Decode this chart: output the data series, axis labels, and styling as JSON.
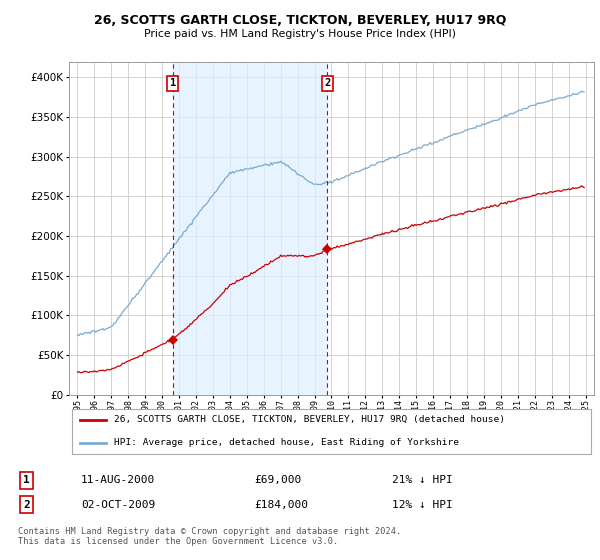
{
  "title": "26, SCOTTS GARTH CLOSE, TICKTON, BEVERLEY, HU17 9RQ",
  "subtitle": "Price paid vs. HM Land Registry's House Price Index (HPI)",
  "legend_label_red": "26, SCOTTS GARTH CLOSE, TICKTON, BEVERLEY, HU17 9RQ (detached house)",
  "legend_label_blue": "HPI: Average price, detached house, East Riding of Yorkshire",
  "transaction1_date": "11-AUG-2000",
  "transaction1_price": "£69,000",
  "transaction1_hpi": "21% ↓ HPI",
  "transaction2_date": "02-OCT-2009",
  "transaction2_price": "£184,000",
  "transaction2_hpi": "12% ↓ HPI",
  "footnote": "Contains HM Land Registry data © Crown copyright and database right 2024.\nThis data is licensed under the Open Government Licence v3.0.",
  "vline1_year": 2000.62,
  "vline2_year": 2009.75,
  "point1_year": 2000.62,
  "point1_price": 69000,
  "point2_year": 2009.75,
  "point2_price": 184000,
  "ylim": [
    0,
    420000
  ],
  "xlim_start": 1994.5,
  "xlim_end": 2025.5,
  "red_color": "#cc0000",
  "blue_color": "#7aaad0",
  "shade_color": "#ddeeff",
  "vline_color": "#cc0000",
  "grid_color": "#cccccc",
  "background_color": "#ffffff"
}
